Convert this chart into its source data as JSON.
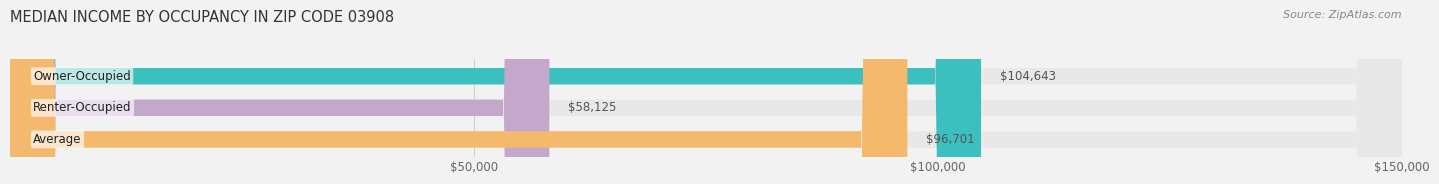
{
  "title": "MEDIAN INCOME BY OCCUPANCY IN ZIP CODE 03908",
  "source": "Source: ZipAtlas.com",
  "categories": [
    "Owner-Occupied",
    "Renter-Occupied",
    "Average"
  ],
  "values": [
    104643,
    58125,
    96701
  ],
  "bar_colors": [
    "#3bbfbf",
    "#c4a8cc",
    "#f5b96e"
  ],
  "bar_bg_color": "#e8e8e8",
  "xlim": [
    0,
    150000
  ],
  "xticks": [
    0,
    50000,
    100000,
    150000
  ],
  "xtick_labels": [
    "$50,000",
    "$100,000",
    "$150,000"
  ],
  "value_labels": [
    "$104,643",
    "$58,125",
    "$96,701"
  ],
  "title_fontsize": 10.5,
  "source_fontsize": 8,
  "label_fontsize": 8.5,
  "tick_fontsize": 8.5,
  "background_color": "#f2f2f2",
  "bar_height": 0.52,
  "bar_label_color": "#555555"
}
